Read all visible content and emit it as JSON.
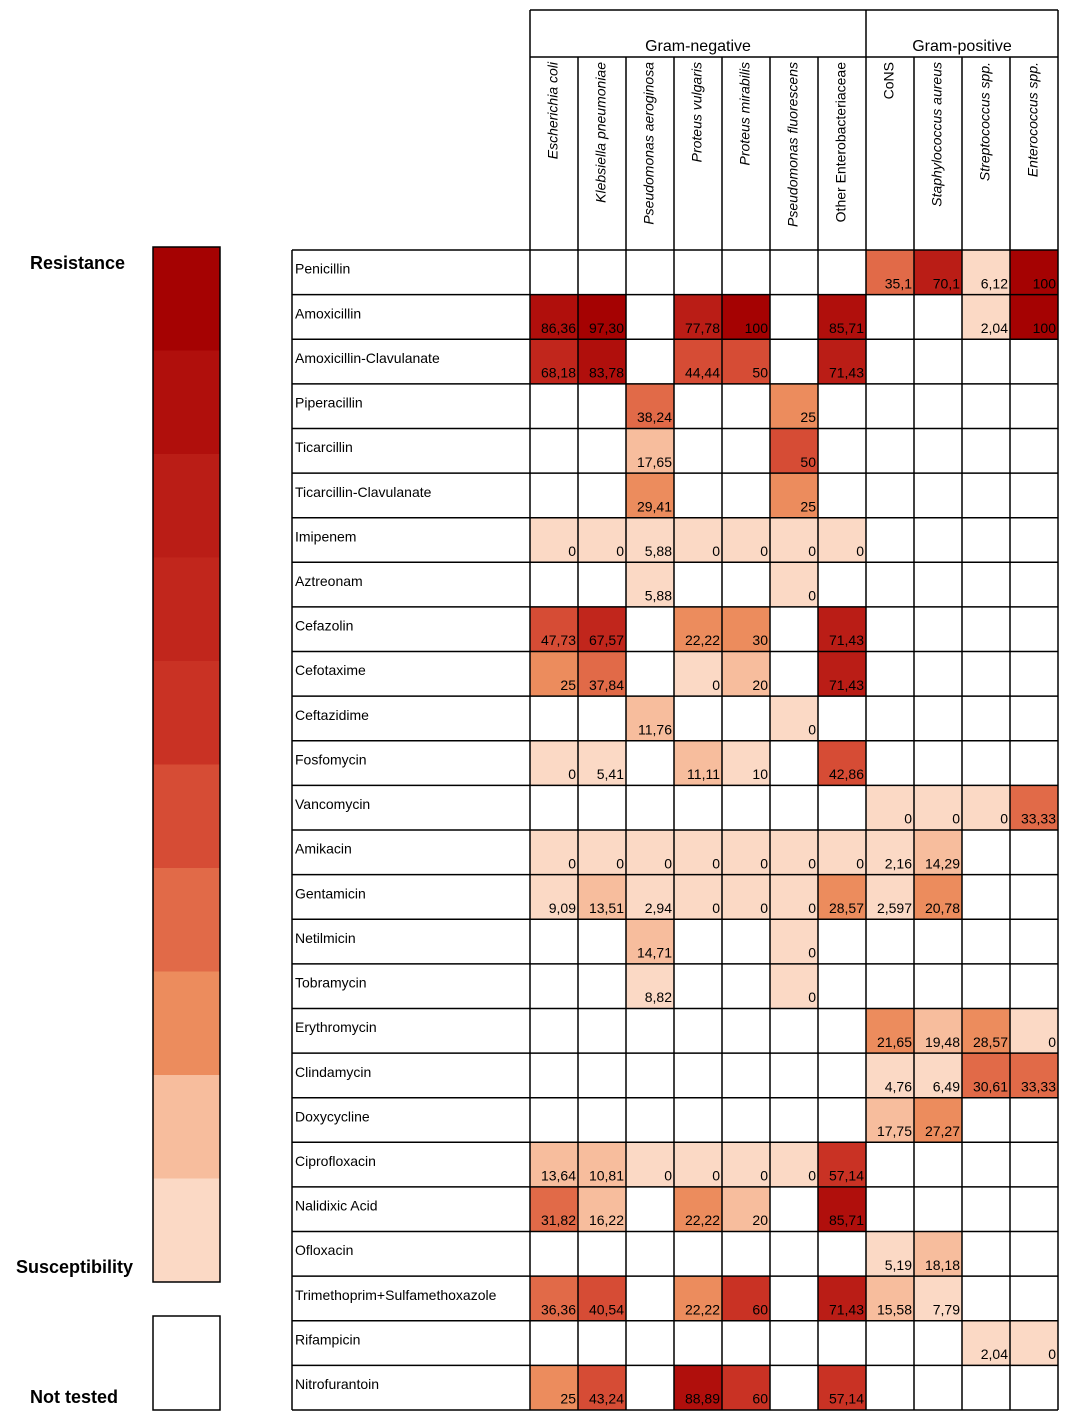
{
  "chart_data": {
    "type": "heatmap",
    "groups": [
      {
        "name": "Gram-negative",
        "columns": [
          "Escherichia coli",
          "Klebsiella pneumoniae",
          "Pseudomonas aeroginosa",
          "Proteus vulgaris",
          "Proteus mirabilis",
          "Pseudomonas fluorescens",
          "Other Enterobacteriaceae"
        ]
      },
      {
        "name": "Gram-positive",
        "columns": [
          "CoNS",
          "Staphylococcus aureus",
          "Streptococcus spp.",
          "Enterococcus spp."
        ]
      }
    ],
    "row_labels": [
      "Penicillin",
      "Amoxicillin",
      "Amoxicillin-Clavulanate",
      "Piperacillin",
      "Ticarcillin",
      "Ticarcillin-Clavulanate",
      "Imipenem",
      "Aztreonam",
      "Cefazolin",
      "Cefotaxime",
      "Ceftazidime",
      "Fosfomycin",
      "Vancomycin",
      "Amikacin",
      "Gentamicin",
      "Netilmicin",
      "Tobramycin",
      "Erythromycin",
      "Clindamycin",
      "Doxycycline",
      "Ciprofloxacin",
      "Nalidixic Acid",
      "Ofloxacin",
      "Trimethoprim+Sulfamethoxazole",
      "Rifampicin",
      "Nitrofurantoin"
    ],
    "values": [
      [
        null,
        null,
        null,
        null,
        null,
        null,
        null,
        35.1,
        70.1,
        6.12,
        100
      ],
      [
        86.36,
        97.3,
        null,
        77.78,
        100,
        null,
        85.71,
        null,
        null,
        2.04,
        100
      ],
      [
        68.18,
        83.78,
        null,
        44.44,
        50,
        null,
        71.43,
        null,
        null,
        null,
        null
      ],
      [
        null,
        null,
        38.24,
        null,
        null,
        25,
        null,
        null,
        null,
        null,
        null
      ],
      [
        null,
        null,
        17.65,
        null,
        null,
        50,
        null,
        null,
        null,
        null,
        null
      ],
      [
        null,
        null,
        29.41,
        null,
        null,
        25,
        null,
        null,
        null,
        null,
        null
      ],
      [
        0,
        0,
        5.88,
        0,
        0,
        0,
        0,
        null,
        null,
        null,
        null
      ],
      [
        null,
        null,
        5.88,
        null,
        null,
        0,
        null,
        null,
        null,
        null,
        null
      ],
      [
        47.73,
        67.57,
        null,
        22.22,
        30,
        null,
        71.43,
        null,
        null,
        null,
        null
      ],
      [
        25,
        37.84,
        null,
        0,
        20,
        null,
        71.43,
        null,
        null,
        null,
        null
      ],
      [
        null,
        null,
        11.76,
        null,
        null,
        0,
        null,
        null,
        null,
        null,
        null
      ],
      [
        0,
        5.41,
        null,
        11.11,
        10,
        null,
        42.86,
        null,
        null,
        null,
        null
      ],
      [
        null,
        null,
        null,
        null,
        null,
        null,
        null,
        0,
        0,
        0,
        33.33
      ],
      [
        0,
        0,
        0,
        0,
        0,
        0,
        0,
        2.16,
        14.29,
        null,
        null
      ],
      [
        9.09,
        13.51,
        2.94,
        0,
        0,
        0,
        28.57,
        2.597,
        20.78,
        null,
        null
      ],
      [
        null,
        null,
        14.71,
        null,
        null,
        0,
        null,
        null,
        null,
        null,
        null
      ],
      [
        null,
        null,
        8.82,
        null,
        null,
        0,
        null,
        null,
        null,
        null,
        null
      ],
      [
        null,
        null,
        null,
        null,
        null,
        null,
        null,
        21.65,
        19.48,
        28.57,
        0
      ],
      [
        null,
        null,
        null,
        null,
        null,
        null,
        null,
        4.76,
        6.49,
        30.61,
        33.33
      ],
      [
        null,
        null,
        null,
        null,
        null,
        null,
        null,
        17.75,
        27.27,
        null,
        null
      ],
      [
        13.64,
        10.81,
        0,
        0,
        0,
        0,
        57.14,
        null,
        null,
        null,
        null
      ],
      [
        31.82,
        16.22,
        null,
        22.22,
        20,
        null,
        85.71,
        null,
        null,
        null,
        null
      ],
      [
        null,
        null,
        null,
        null,
        null,
        null,
        null,
        5.19,
        18.18,
        null,
        null
      ],
      [
        36.36,
        40.54,
        null,
        22.22,
        60,
        null,
        71.43,
        15.58,
        7.79,
        null,
        null
      ],
      [
        null,
        null,
        null,
        null,
        null,
        null,
        null,
        null,
        null,
        2.04,
        0
      ],
      [
        25,
        43.24,
        null,
        88.89,
        60,
        null,
        57.14,
        null,
        null,
        null,
        null
      ]
    ],
    "value_labels": [
      [
        null,
        null,
        null,
        null,
        null,
        null,
        null,
        "35,1",
        "70,1",
        "6,12",
        "100"
      ],
      [
        "86,36",
        "97,30",
        null,
        "77,78",
        "100",
        null,
        "85,71",
        null,
        null,
        "2,04",
        "100"
      ],
      [
        "68,18",
        "83,78",
        null,
        "44,44",
        "50",
        null,
        "71,43",
        null,
        null,
        null,
        null
      ],
      [
        null,
        null,
        "38,24",
        null,
        null,
        "25",
        null,
        null,
        null,
        null,
        null
      ],
      [
        null,
        null,
        "17,65",
        null,
        null,
        "50",
        null,
        null,
        null,
        null,
        null
      ],
      [
        null,
        null,
        "29,41",
        null,
        null,
        "25",
        null,
        null,
        null,
        null,
        null
      ],
      [
        "0",
        "0",
        "5,88",
        "0",
        "0",
        "0",
        "0",
        null,
        null,
        null,
        null
      ],
      [
        null,
        null,
        "5,88",
        null,
        null,
        "0",
        null,
        null,
        null,
        null,
        null
      ],
      [
        "47,73",
        "67,57",
        null,
        "22,22",
        "30",
        null,
        "71,43",
        null,
        null,
        null,
        null
      ],
      [
        "25",
        "37,84",
        null,
        "0",
        "20",
        null,
        "71,43",
        null,
        null,
        null,
        null
      ],
      [
        null,
        null,
        "11,76",
        null,
        null,
        "0",
        null,
        null,
        null,
        null,
        null
      ],
      [
        "0",
        "5,41",
        null,
        "11,11",
        "10",
        null,
        "42,86",
        null,
        null,
        null,
        null
      ],
      [
        null,
        null,
        null,
        null,
        null,
        null,
        null,
        "0",
        "0",
        "0",
        "33,33"
      ],
      [
        "0",
        "0",
        "0",
        "0",
        "0",
        "0",
        "0",
        "2,16",
        "14,29",
        null,
        null
      ],
      [
        "9,09",
        "13,51",
        "2,94",
        "0",
        "0",
        "0",
        "28,57",
        "2,597",
        "20,78",
        null,
        null
      ],
      [
        null,
        null,
        "14,71",
        null,
        null,
        "0",
        null,
        null,
        null,
        null,
        null
      ],
      [
        null,
        null,
        "8,82",
        null,
        null,
        "0",
        null,
        null,
        null,
        null,
        null
      ],
      [
        null,
        null,
        null,
        null,
        null,
        null,
        null,
        "21,65",
        "19,48",
        "28,57",
        "0"
      ],
      [
        null,
        null,
        null,
        null,
        null,
        null,
        null,
        "4,76",
        "6,49",
        "30,61",
        "33,33"
      ],
      [
        null,
        null,
        null,
        null,
        null,
        null,
        null,
        "17,75",
        "27,27",
        null,
        null
      ],
      [
        "13,64",
        "10,81",
        "0",
        "0",
        "0",
        "0",
        "57,14",
        null,
        null,
        null,
        null
      ],
      [
        "31,82",
        "16,22",
        null,
        "22,22",
        "20",
        null,
        "85,71",
        null,
        null,
        null,
        null
      ],
      [
        null,
        null,
        null,
        null,
        null,
        null,
        null,
        "5,19",
        "18,18",
        null,
        null
      ],
      [
        "36,36",
        "40,54",
        null,
        "22,22",
        "60",
        null,
        "71,43",
        "15,58",
        "7,79",
        null,
        null
      ],
      [
        null,
        null,
        null,
        null,
        null,
        null,
        null,
        null,
        null,
        "2,04",
        "0"
      ],
      [
        "25",
        "43,24",
        null,
        "88,89",
        "60",
        null,
        "57,14",
        null,
        null,
        null,
        null
      ]
    ],
    "legend": {
      "high": "Resistance",
      "low": "Susceptibility",
      "missing": "Not tested"
    },
    "colors": [
      "#a50202",
      "#b00f0c",
      "#ba1d16",
      "#c1261c",
      "#c93224",
      "#d64c35",
      "#e16a48",
      "#ec8c5d",
      "#f7bd9d",
      "#fbd9c5"
    ],
    "vlim": [
      0,
      100
    ]
  }
}
